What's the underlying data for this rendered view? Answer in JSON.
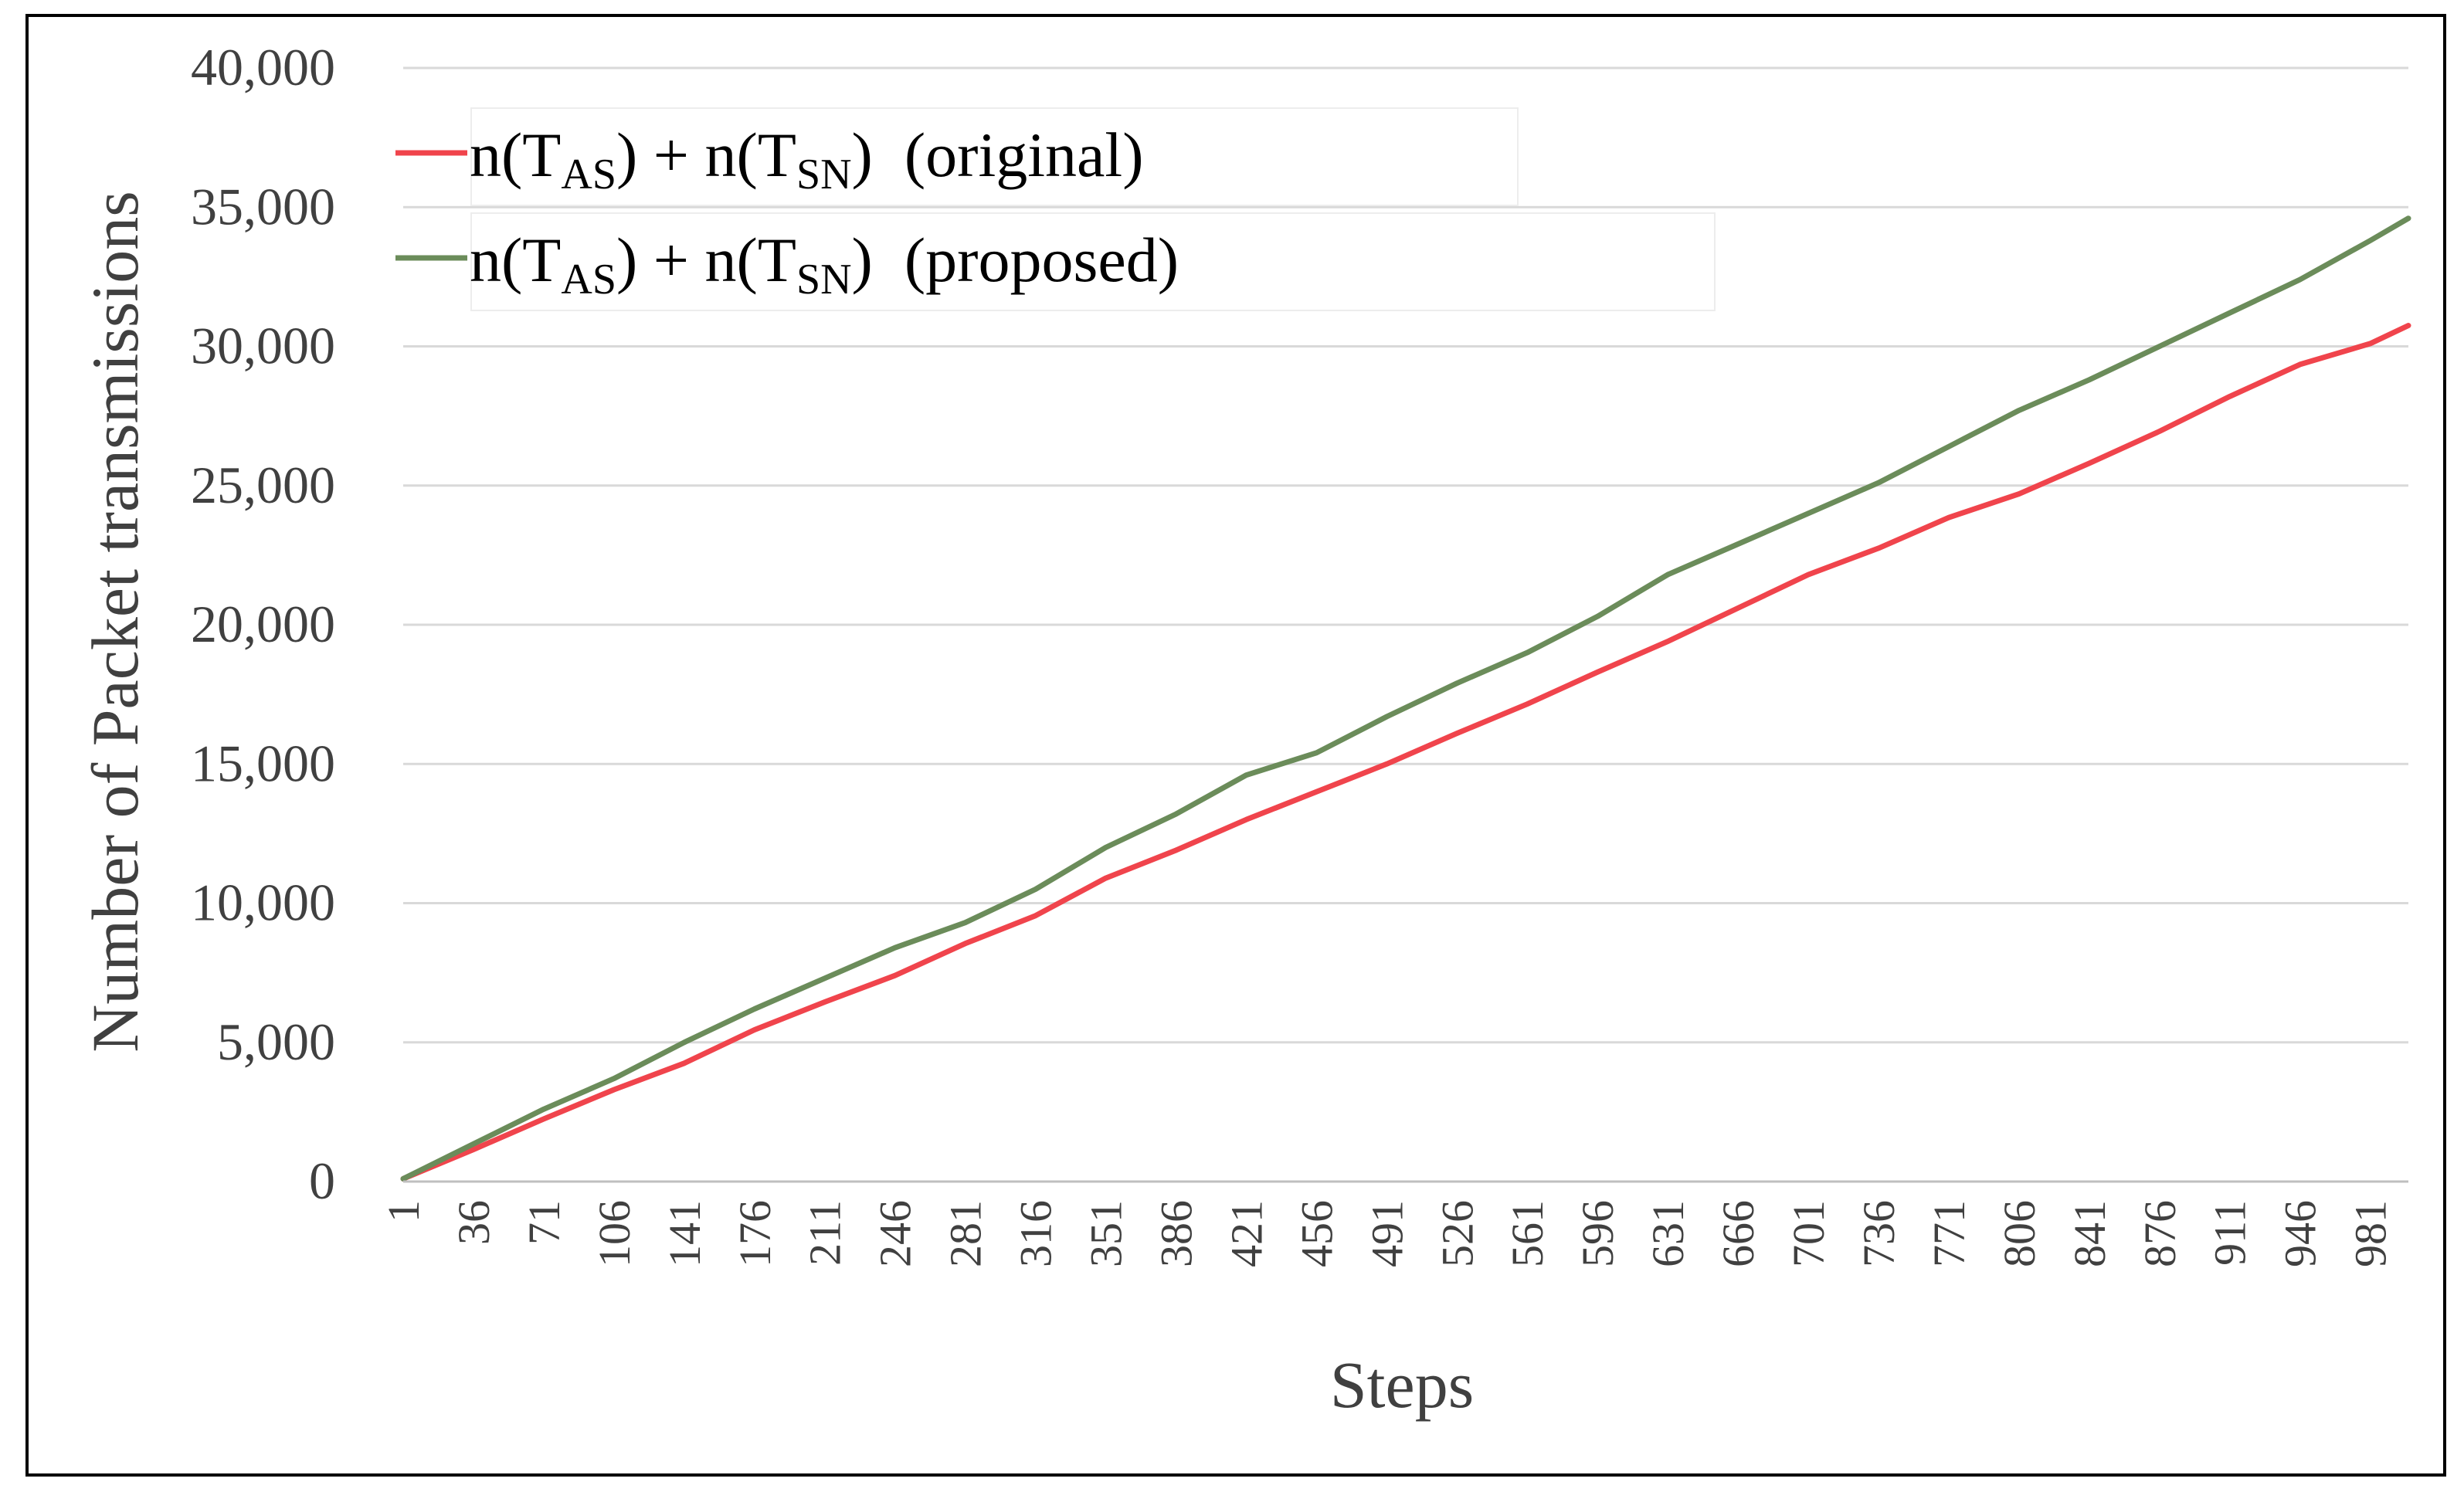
{
  "chart_data": {
    "type": "line",
    "xlabel": "Steps",
    "ylabel": "Number of Packet transmissions",
    "ylim": [
      0,
      40000
    ],
    "xlim": [
      1,
      1000
    ],
    "grid": true,
    "legend_position": "top-left",
    "yticks": [
      "0",
      "5,000",
      "10,000",
      "15,000",
      "20,000",
      "25,000",
      "30,000",
      "35,000",
      "40,000"
    ],
    "ytick_values": [
      0,
      5000,
      10000,
      15000,
      20000,
      25000,
      30000,
      35000,
      40000
    ],
    "xticks": [
      "1",
      "36",
      "71",
      "106",
      "141",
      "176",
      "211",
      "246",
      "281",
      "316",
      "351",
      "386",
      "421",
      "456",
      "491",
      "526",
      "561",
      "596",
      "631",
      "666",
      "701",
      "736",
      "771",
      "806",
      "841",
      "876",
      "911",
      "946",
      "981"
    ],
    "x": [
      1,
      36,
      71,
      106,
      141,
      176,
      211,
      246,
      281,
      316,
      351,
      386,
      421,
      456,
      491,
      526,
      561,
      596,
      631,
      666,
      701,
      736,
      771,
      806,
      841,
      876,
      911,
      946,
      981,
      1000
    ],
    "series": [
      {
        "name": "original",
        "legend": {
          "pre": "n(T",
          "sub1": "AS",
          "mid": ") + n(T",
          "sub2": "SN",
          "post": ")  (original)"
        },
        "color": "#f0444c",
        "values": [
          100,
          1150,
          2250,
          3300,
          4250,
          5450,
          6450,
          7400,
          8550,
          9550,
          10900,
          11900,
          13000,
          14000,
          15000,
          16100,
          17150,
          18300,
          19400,
          20600,
          21800,
          22750,
          23850,
          24700,
          25800,
          26950,
          28200,
          29350,
          30100,
          30750
        ]
      },
      {
        "name": "proposed",
        "legend": {
          "pre": "n(T",
          "sub1": "AS",
          "mid": ") + n(T",
          "sub2": "SN",
          "post": ")  (proposed)"
        },
        "color": "#6b8c5a",
        "values": [
          100,
          1350,
          2600,
          3700,
          5000,
          6200,
          7300,
          8400,
          9300,
          10500,
          12000,
          13200,
          14600,
          15400,
          16700,
          17900,
          19000,
          20300,
          21800,
          22900,
          24000,
          25100,
          26400,
          27700,
          28800,
          30000,
          31200,
          32400,
          33800,
          34600
        ]
      }
    ]
  }
}
